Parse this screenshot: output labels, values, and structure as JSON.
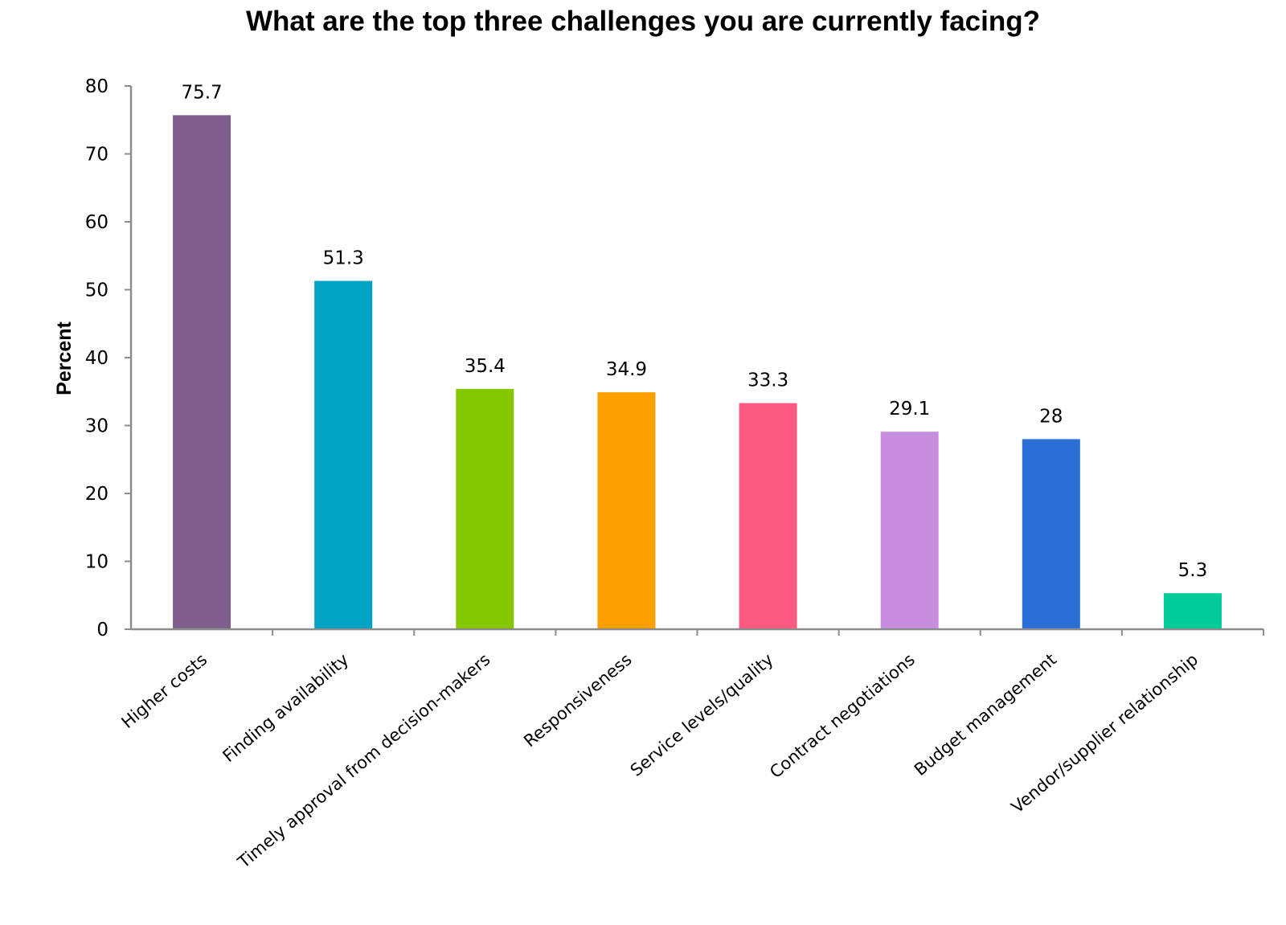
{
  "chart_data": {
    "type": "bar",
    "title": "What are the top three challenges you are currently facing?",
    "xlabel": "",
    "ylabel": "Percent",
    "ylim": [
      0,
      80
    ],
    "y_ticks": [
      0,
      10,
      20,
      30,
      40,
      50,
      60,
      70,
      80
    ],
    "grid": false,
    "legend": "none",
    "categories": [
      "Higher costs",
      "Finding availability",
      "Timely approval from decision-makers",
      "Responsiveness",
      "Service levels/quality",
      "Contract negotiations",
      "Budget management",
      "Vendor/supplier relationship"
    ],
    "values": [
      75.7,
      51.3,
      35.4,
      34.9,
      33.3,
      29.1,
      28,
      5.3
    ],
    "data_labels": [
      "75.7",
      "51.3",
      "35.4",
      "34.9",
      "33.3",
      "29.1",
      "28",
      "5.3"
    ],
    "colors": [
      "#7f5e8e",
      "#00a3c4",
      "#86c800",
      "#fca000",
      "#fd5a82",
      "#c78ee0",
      "#2b6fd6",
      "#00cc99"
    ],
    "axis_color": "#8c8c8c"
  }
}
